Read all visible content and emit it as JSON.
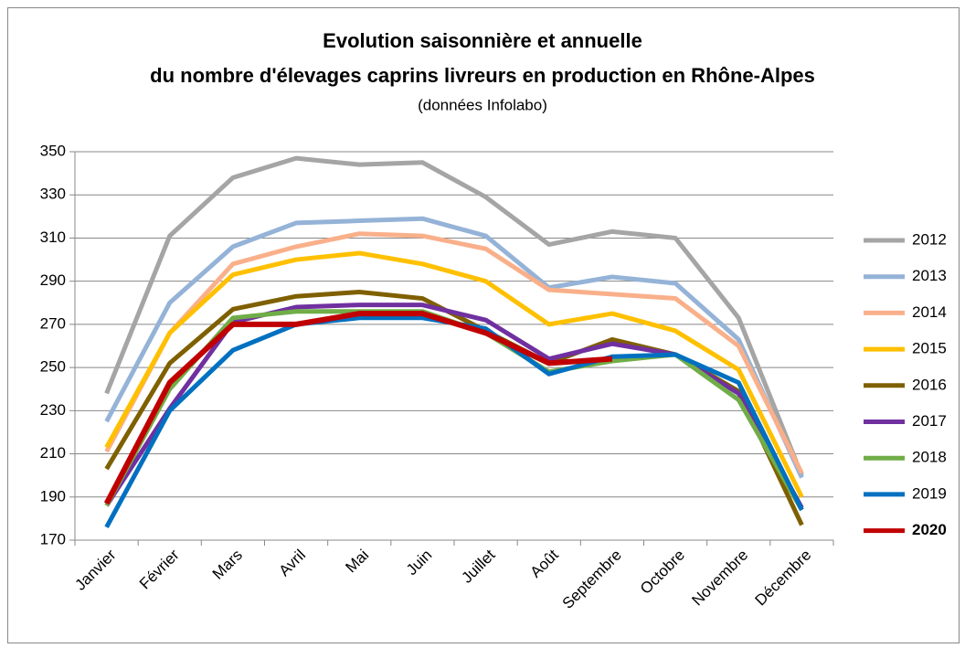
{
  "chart_data": {
    "type": "line",
    "title": [
      "Evolution saisonnière et annuelle",
      "du nombre d'élevages caprins livreurs en production en Rhône-Alpes"
    ],
    "subtitle": "(données Infolabo)",
    "categories": [
      "Janvier",
      "Février",
      "Mars",
      "Avril",
      "Mai",
      "Juin",
      "Juillet",
      "Août",
      "Septembre",
      "Octobre",
      "Novembre",
      "Décembre"
    ],
    "ylim": [
      170,
      350
    ],
    "yticks": [
      170,
      190,
      210,
      230,
      250,
      270,
      290,
      310,
      330,
      350
    ],
    "grid": true,
    "legend": "right",
    "series": [
      {
        "name": "2012",
        "color": "#a5a5a5",
        "values": [
          238,
          311,
          338,
          347,
          344,
          345,
          329,
          307,
          313,
          310,
          273,
          200
        ]
      },
      {
        "name": "2013",
        "color": "#95b3d7",
        "values": [
          225,
          280,
          306,
          317,
          318,
          319,
          311,
          287,
          292,
          289,
          263,
          199
        ]
      },
      {
        "name": "2014",
        "color": "#f9b08a",
        "values": [
          211,
          266,
          298,
          306,
          312,
          311,
          305,
          286,
          284,
          282,
          260,
          201
        ]
      },
      {
        "name": "2015",
        "color": "#ffc000",
        "values": [
          213,
          266,
          293,
          300,
          303,
          298,
          290,
          270,
          275,
          267,
          249,
          190
        ]
      },
      {
        "name": "2016",
        "color": "#7f6000",
        "values": [
          203,
          252,
          277,
          283,
          285,
          282,
          267,
          252,
          263,
          256,
          239,
          177
        ]
      },
      {
        "name": "2017",
        "color": "#7030a0",
        "values": [
          186,
          231,
          271,
          278,
          279,
          279,
          272,
          254,
          261,
          256,
          238,
          185
        ]
      },
      {
        "name": "2018",
        "color": "#70ad47",
        "values": [
          186,
          240,
          273,
          276,
          276,
          276,
          266,
          248,
          253,
          256,
          235,
          184
        ]
      },
      {
        "name": "2019",
        "color": "#0070c0",
        "values": [
          176,
          230,
          258,
          270,
          273,
          273,
          268,
          247,
          255,
          256,
          243,
          184
        ]
      },
      {
        "name": "2020",
        "color": "#c00000",
        "bold": true,
        "values": [
          187,
          243,
          270,
          270,
          275,
          275,
          266,
          252,
          254,
          null,
          null,
          null
        ]
      }
    ]
  }
}
